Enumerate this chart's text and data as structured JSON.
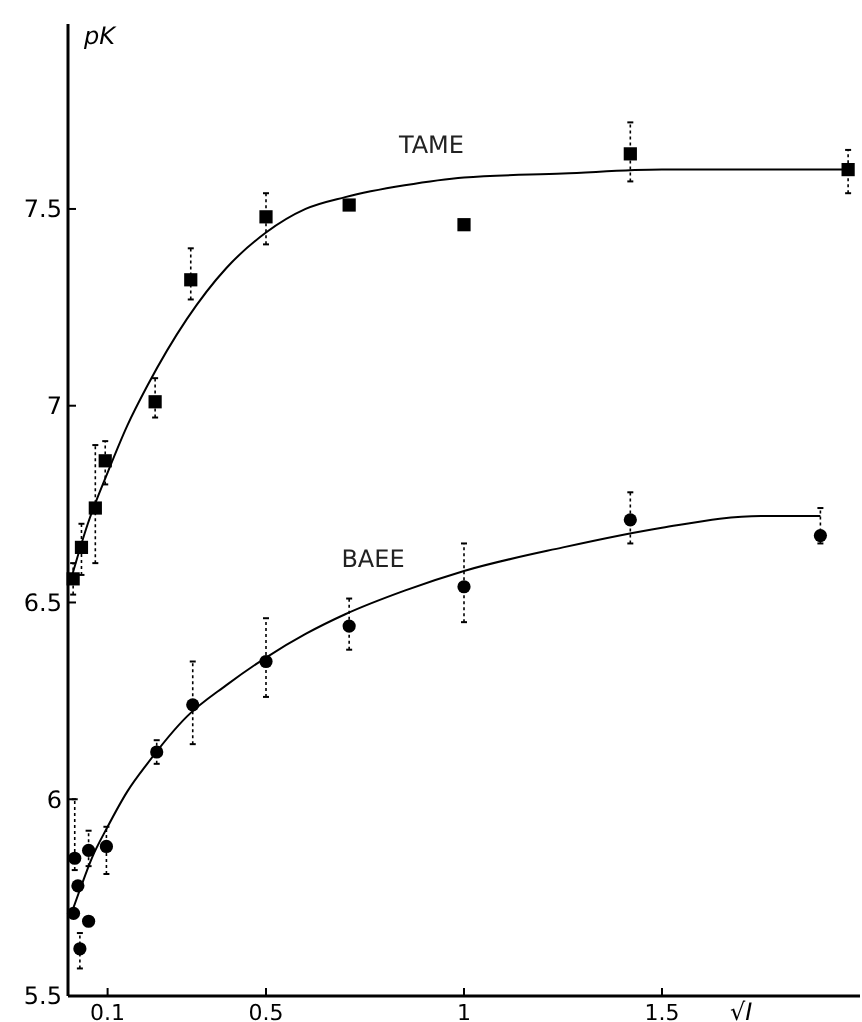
{
  "chart_data": {
    "type": "scatter",
    "xlabel": "√I",
    "ylabel": "pK",
    "xlim": [
      0,
      2
    ],
    "ylim": [
      5.5,
      7.97
    ],
    "xticks": [
      0.1,
      0.5,
      1,
      1.5
    ],
    "yticks": [
      5.5,
      6,
      6.5,
      7,
      7.5
    ],
    "grid": false,
    "series": [
      {
        "name": "TAME",
        "type": "line",
        "line_style": "solid",
        "marker": "none",
        "color": "#000000",
        "x": [
          0.005,
          0.05,
          0.1,
          0.15,
          0.2,
          0.3,
          0.4,
          0.5,
          0.6,
          0.7,
          0.85,
          1.0,
          1.25,
          1.5,
          1.75,
          1.98
        ],
        "values": [
          6.55,
          6.7,
          6.83,
          6.95,
          7.05,
          7.22,
          7.35,
          7.44,
          7.5,
          7.53,
          7.56,
          7.58,
          7.59,
          7.6,
          7.6,
          7.6
        ]
      },
      {
        "marker": "square",
        "color": "#000000",
        "x": [
          0.013,
          0.034,
          0.069,
          0.094,
          0.22,
          0.31,
          0.5,
          0.71,
          1.0,
          1.42,
          1.97
        ],
        "values": [
          6.56,
          6.64,
          6.74,
          6.86,
          7.01,
          7.32,
          7.48,
          7.51,
          7.46,
          7.64,
          7.6
        ],
        "errors": [
          [
            6.52,
            6.6
          ],
          [
            6.57,
            6.7
          ],
          [
            6.6,
            6.9
          ],
          [
            6.8,
            6.91
          ],
          [
            6.97,
            7.07
          ],
          [
            7.27,
            7.4
          ],
          [
            7.41,
            7.54
          ],
          null,
          null,
          [
            7.57,
            7.72
          ],
          [
            7.54,
            7.65
          ]
        ]
      },
      {
        "name": "BAEE",
        "type": "line",
        "line_style": "solid",
        "marker": "none",
        "color": "#000000",
        "x": [
          0.005,
          0.03,
          0.06,
          0.1,
          0.15,
          0.2,
          0.3,
          0.4,
          0.5,
          0.6,
          0.7,
          0.85,
          1.0,
          1.25,
          1.5,
          1.75,
          1.9
        ],
        "values": [
          5.7,
          5.77,
          5.85,
          5.93,
          6.02,
          6.09,
          6.21,
          6.29,
          6.36,
          6.42,
          6.47,
          6.53,
          6.58,
          6.64,
          6.69,
          6.72,
          6.72
        ]
      },
      {
        "marker": "circle",
        "color": "#000000",
        "x": [
          0.014,
          0.017,
          0.025,
          0.03,
          0.052,
          0.052,
          0.097,
          0.224,
          0.315,
          0.5,
          0.71,
          1.0,
          1.42,
          1.9
        ],
        "values": [
          5.71,
          5.85,
          5.78,
          5.62,
          5.87,
          5.69,
          5.88,
          6.12,
          6.24,
          6.35,
          6.44,
          6.54,
          6.71,
          6.67
        ],
        "errors": [
          null,
          [
            5.82,
            6.0
          ],
          null,
          [
            5.57,
            5.66
          ],
          [
            5.83,
            5.92
          ],
          null,
          [
            5.81,
            5.93
          ],
          [
            6.09,
            6.15
          ],
          [
            6.14,
            6.35
          ],
          [
            6.26,
            6.46
          ],
          [
            6.38,
            6.51
          ],
          [
            6.45,
            6.65
          ],
          [
            6.65,
            6.78
          ],
          [
            6.65,
            6.74
          ]
        ]
      }
    ]
  }
}
